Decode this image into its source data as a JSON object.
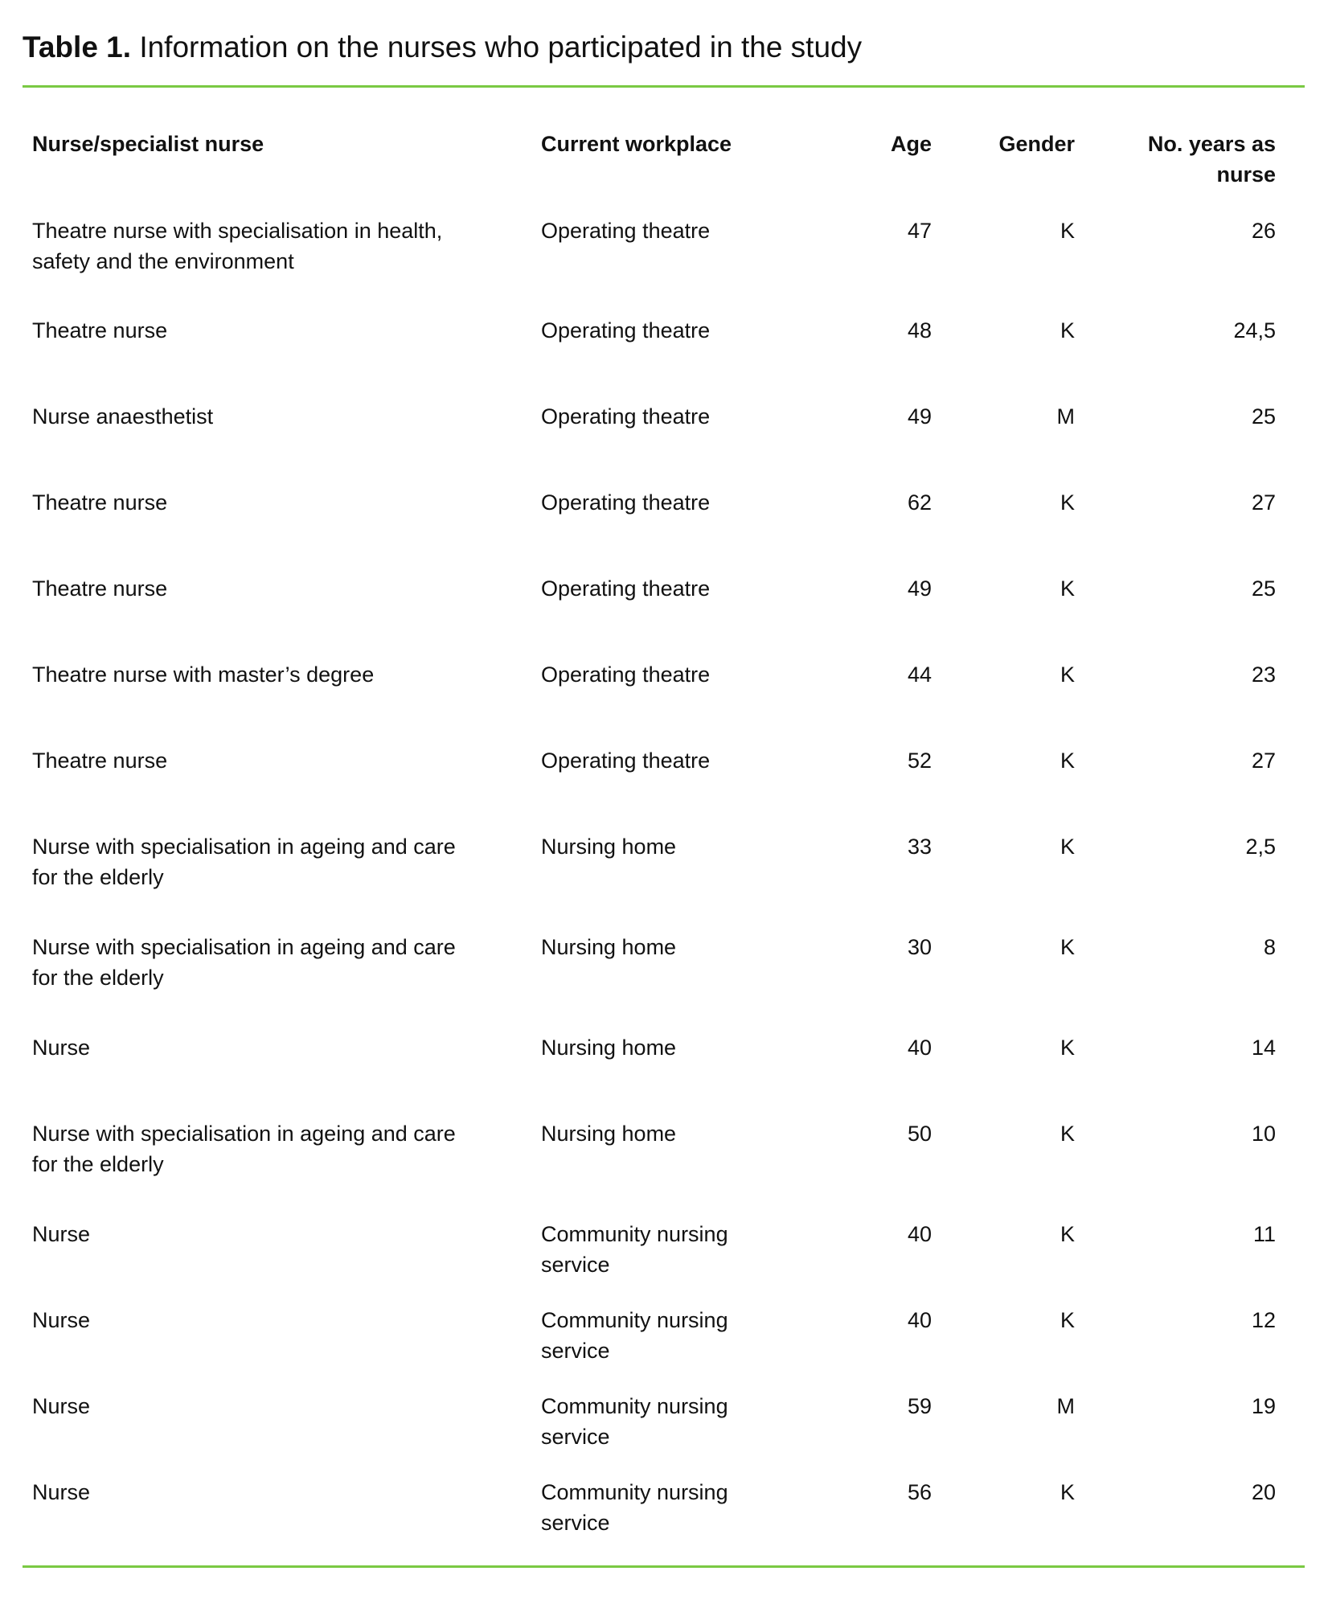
{
  "title": {
    "label": "Table 1.",
    "text": "Information on the nurses who participated in the study"
  },
  "accent_color": "#7ac943",
  "columns": [
    "Nurse/specialist nurse",
    "Current workplace",
    "Age",
    "Gender",
    "No. years as nurse"
  ],
  "rows": [
    [
      "Theatre nurse with specialisation in health, safety and the environment",
      "Operating theatre",
      "47",
      "K",
      "26"
    ],
    [
      "Theatre nurse",
      "Operating theatre",
      "48",
      "K",
      "24,5"
    ],
    [
      "Nurse anaesthetist",
      "Operating theatre",
      "49",
      "M",
      "25"
    ],
    [
      "Theatre nurse",
      "Operating theatre",
      "62",
      "K",
      "27"
    ],
    [
      "Theatre nurse",
      "Operating theatre",
      "49",
      "K",
      "25"
    ],
    [
      "Theatre nurse with master’s degree",
      "Operating theatre",
      "44",
      "K",
      "23"
    ],
    [
      "Theatre nurse",
      "Operating theatre",
      "52",
      "K",
      "27"
    ],
    [
      "Nurse with specialisation in ageing and care for the elderly",
      "Nursing home",
      "33",
      "K",
      "2,5"
    ],
    [
      "Nurse with specialisation in ageing and care for the elderly",
      "Nursing home",
      "30",
      "K",
      "8"
    ],
    [
      "Nurse",
      "Nursing home",
      "40",
      "K",
      "14"
    ],
    [
      "Nurse with specialisation in ageing and care for the elderly",
      "Nursing home",
      "50",
      "K",
      "10"
    ],
    [
      "Nurse",
      "Community nursing service",
      "40",
      "K",
      "11"
    ],
    [
      "Nurse",
      "Community nursing service",
      "40",
      "K",
      "12"
    ],
    [
      "Nurse",
      "Community nursing service",
      "59",
      "M",
      "19"
    ],
    [
      "Nurse",
      "Community nursing service",
      "56",
      "K",
      "20"
    ]
  ]
}
